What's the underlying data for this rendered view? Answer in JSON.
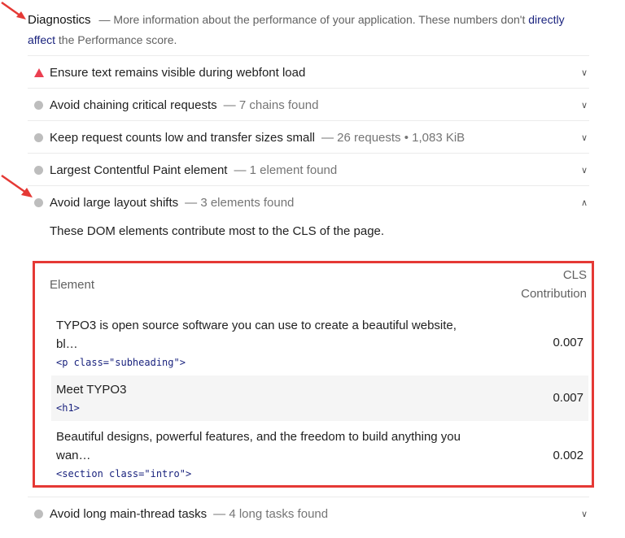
{
  "header": {
    "title": "Diagnostics",
    "desc_before": "— More information about the performance of your application. These numbers don't ",
    "link": "directly affect",
    "desc_after": " the Performance score."
  },
  "audits": [
    {
      "label": "Ensure text remains visible during webfont load",
      "display": "",
      "status": "fail",
      "icon": "warning-triangle-icon",
      "expanded": false
    },
    {
      "label": "Avoid chaining critical requests",
      "display": "— 7 chains found",
      "status": "info",
      "icon": "gray-dot-icon",
      "expanded": false
    },
    {
      "label": "Keep request counts low and transfer sizes small",
      "display": "— 26 requests • 1,083 KiB",
      "status": "info",
      "icon": "gray-dot-icon",
      "expanded": false
    },
    {
      "label": "Largest Contentful Paint element",
      "display": "— 1 element found",
      "status": "info",
      "icon": "gray-dot-icon",
      "expanded": false
    },
    {
      "label": "Avoid large layout shifts",
      "display": "— 3 elements found",
      "status": "info",
      "icon": "gray-dot-icon",
      "expanded": true
    },
    {
      "label": "Avoid long main-thread tasks",
      "display": "— 4 long tasks found",
      "status": "info",
      "icon": "gray-dot-icon",
      "expanded": false
    }
  ],
  "cls_details": {
    "description": "These DOM elements contribute most to the CLS of the page.",
    "columns": [
      "Element",
      "CLS",
      "Contribution"
    ],
    "rows": [
      {
        "text": "TYPO3 is open source software you can use to create a beautiful website, bl…",
        "code": "<p class=\"subheading\">",
        "value": "0.007"
      },
      {
        "text": "Meet TYPO3",
        "code": "<h1>",
        "value": "0.007"
      },
      {
        "text": "Beautiful designs, powerful features, and the freedom to build anything you wan…",
        "code": "<section class=\"intro\">",
        "value": "0.002"
      }
    ]
  },
  "colors": {
    "fail": "#eb3f51",
    "info": "#bdbdbd",
    "link": "#1a237e",
    "highlight_box": "#e53935",
    "annotation_arrow": "#e53935"
  }
}
